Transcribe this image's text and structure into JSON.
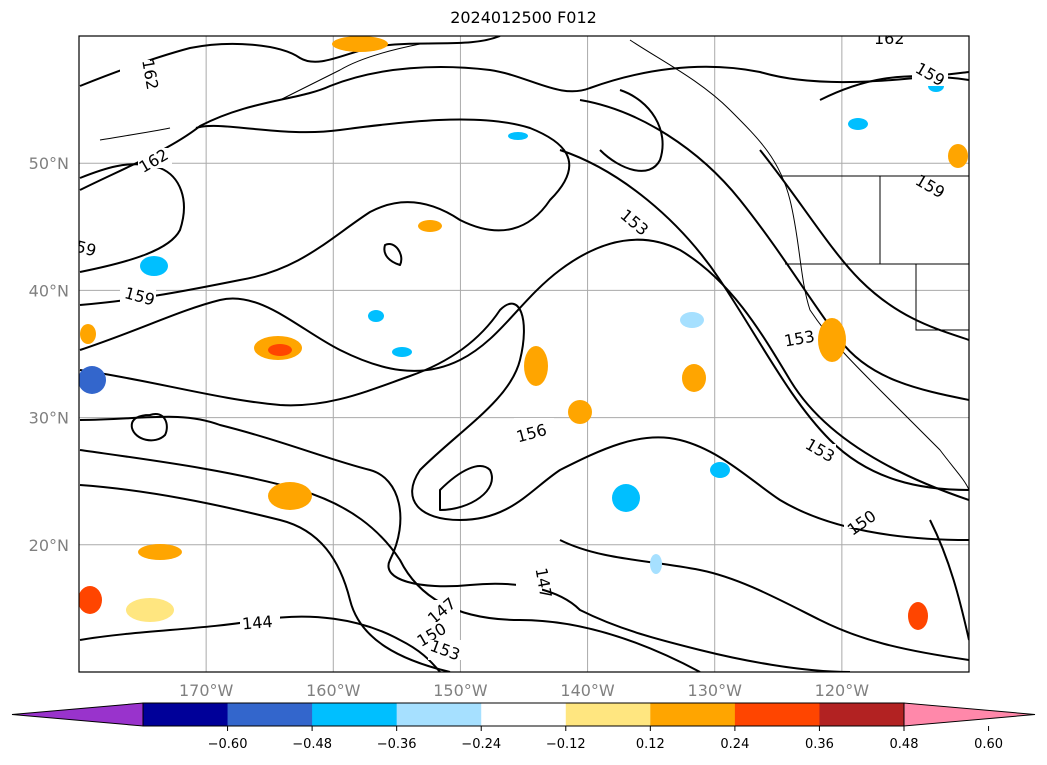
{
  "title": "2024012500 F012",
  "map": {
    "lon_range": [
      -180,
      -110
    ],
    "lat_range": [
      10,
      60
    ],
    "lat_ticks": [
      {
        "v": 50,
        "label": "50°N"
      },
      {
        "v": 40,
        "label": "40°N"
      },
      {
        "v": 30,
        "label": "30°N"
      },
      {
        "v": 20,
        "label": "20°N"
      }
    ],
    "lon_ticks": [
      {
        "v": -170,
        "label": "170°W"
      },
      {
        "v": -160,
        "label": "160°W"
      },
      {
        "v": -150,
        "label": "150°W"
      },
      {
        "v": -140,
        "label": "140°W"
      },
      {
        "v": -130,
        "label": "130°W"
      },
      {
        "v": -120,
        "label": "120°W"
      }
    ],
    "grid": true,
    "contour_labels": [
      "162",
      "162",
      "159",
      "159",
      "159",
      "153",
      "153",
      "153",
      "156",
      "150",
      "147",
      "147",
      "150",
      "153",
      "144",
      "162",
      "59"
    ],
    "colorbar": {
      "colors": [
        "#9933cc",
        "#000099",
        "#3366cc",
        "#00bfff",
        "#a6e0ff",
        "#ffffff",
        "#ffe680",
        "#ffa500",
        "#ff4500",
        "#b22222",
        "#ff88aa"
      ],
      "ticks": [
        "−0.60",
        "−0.48",
        "−0.36",
        "−0.24",
        "−0.12",
        "0.12",
        "0.24",
        "0.36",
        "0.48",
        "0.60"
      ],
      "extend": "both"
    }
  }
}
